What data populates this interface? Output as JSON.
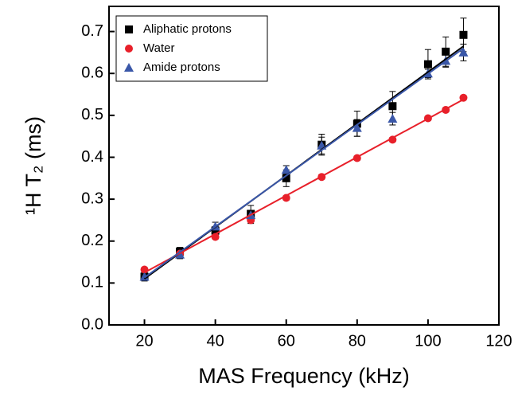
{
  "chart_data": {
    "type": "scatter",
    "x_label": "MAS Frequency (kHz)",
    "y_label": "¹H T₂ (ms)",
    "xlim": [
      10,
      120
    ],
    "ylim": [
      0,
      0.76
    ],
    "xticks": [
      20,
      40,
      60,
      80,
      100,
      120
    ],
    "yticks": [
      {
        "value": 0,
        "label": "0.0"
      },
      {
        "value": 0.1,
        "label": "0.1"
      },
      {
        "value": 0.2,
        "label": "0.2"
      },
      {
        "value": 0.3,
        "label": "0.3"
      },
      {
        "value": 0.4,
        "label": "0.4"
      },
      {
        "value": 0.5,
        "label": "0.5"
      },
      {
        "value": 0.6,
        "label": "0.6"
      },
      {
        "value": 0.7,
        "label": "0.7"
      }
    ],
    "legend": "top-left",
    "series": [
      {
        "name": "Aliphatic protons",
        "color": "#000000",
        "marker": "square",
        "x": [
          20,
          30,
          40,
          50,
          60,
          70,
          80,
          90,
          100,
          105,
          110
        ],
        "values": [
          0.115,
          0.175,
          0.225,
          0.265,
          0.35,
          0.43,
          0.48,
          0.522,
          0.622,
          0.652,
          0.692
        ],
        "errors": [
          0.01,
          0.01,
          0.01,
          0.02,
          0.02,
          0.025,
          0.03,
          0.035,
          0.035,
          0.035,
          0.04
        ],
        "fit": {
          "x": [
            20,
            110
          ],
          "y": [
            0.11,
            0.665
          ]
        }
      },
      {
        "name": "Water",
        "color": "#e8202a",
        "marker": "circle",
        "x": [
          20,
          30,
          40,
          50,
          60,
          70,
          80,
          90,
          100,
          105,
          110
        ],
        "values": [
          0.132,
          0.17,
          0.21,
          0.25,
          0.303,
          0.353,
          0.398,
          0.442,
          0.493,
          0.513,
          0.542
        ],
        "errors": [
          0.005,
          0.005,
          0.005,
          0.008,
          0.005,
          0.005,
          0.005,
          0.005,
          0.005,
          0.005,
          0.005
        ],
        "fit": {
          "x": [
            20,
            110
          ],
          "y": [
            0.125,
            0.538
          ]
        }
      },
      {
        "name": "Amide protons",
        "color": "#3a57a8",
        "marker": "triangle",
        "x": [
          20,
          30,
          40,
          50,
          60,
          70,
          80,
          90,
          100,
          105,
          110
        ],
        "values": [
          0.115,
          0.168,
          0.235,
          0.262,
          0.37,
          0.428,
          0.47,
          0.492,
          0.6,
          0.63,
          0.65
        ],
        "errors": [
          0.01,
          0.01,
          0.01,
          0.01,
          0.01,
          0.02,
          0.02,
          0.015,
          0.01,
          0.015,
          0.02
        ],
        "fit": {
          "x": [
            20,
            110
          ],
          "y": [
            0.113,
            0.66
          ]
        }
      }
    ]
  }
}
